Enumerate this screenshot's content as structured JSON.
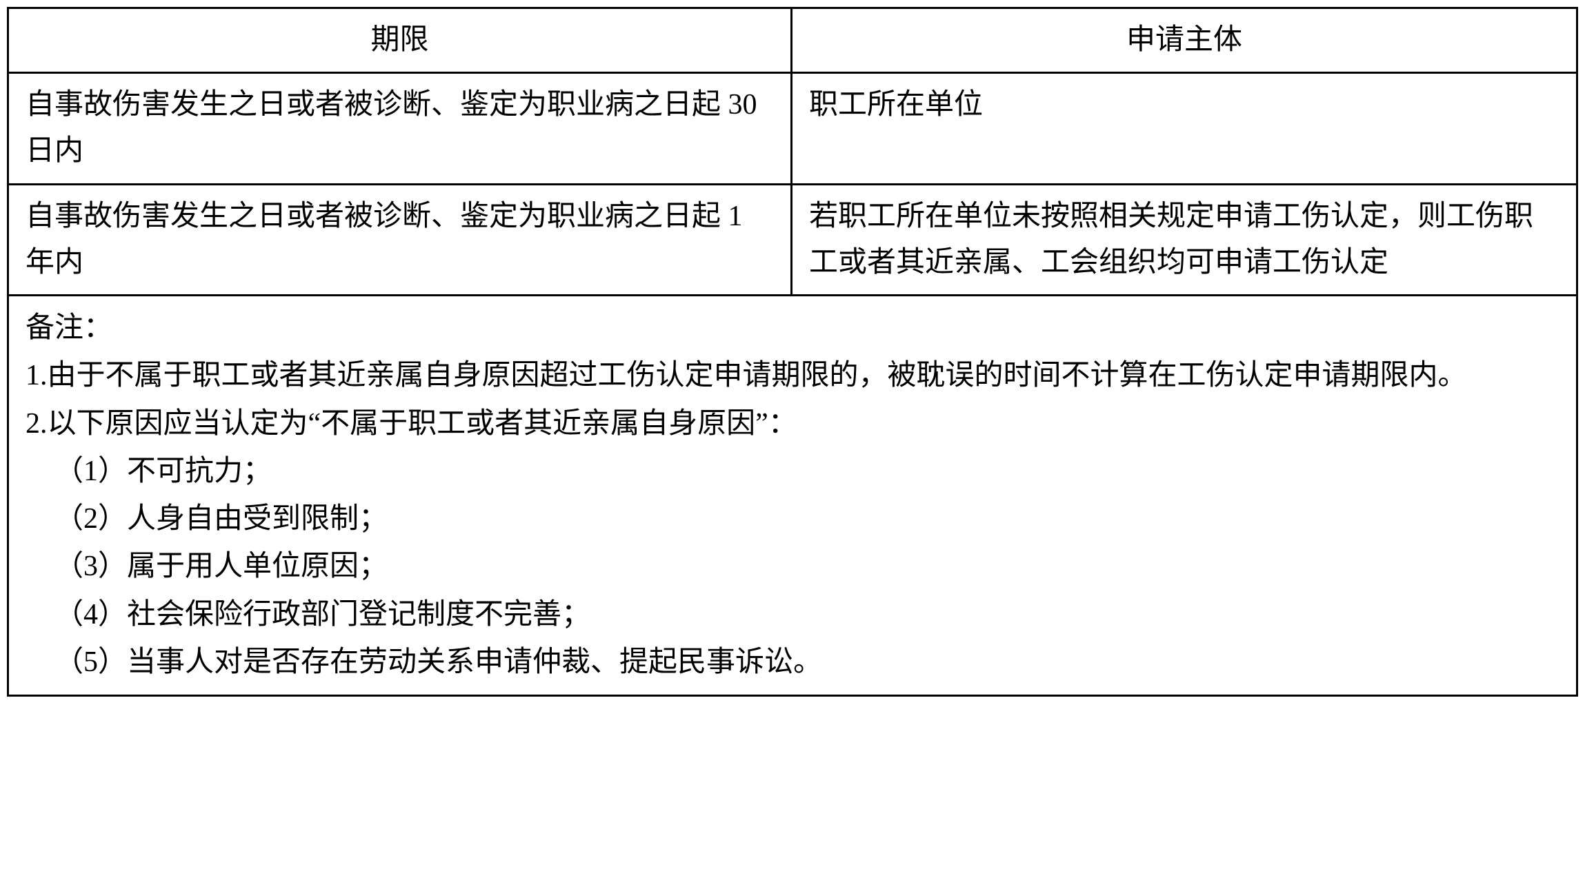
{
  "table": {
    "headers": {
      "col1": "期限",
      "col2": "申请主体"
    },
    "rows": [
      {
        "col1": "自事故伤害发生之日或者被诊断、鉴定为职业病之日起 30 日内",
        "col2": "职工所在单位"
      },
      {
        "col1": "自事故伤害发生之日或者被诊断、鉴定为职业病之日起 1 年内",
        "col2": "若职工所在单位未按照相关规定申请工伤认定，则工伤职工或者其近亲属、工会组织均可申请工伤认定"
      }
    ],
    "notes": {
      "title": "备注：",
      "items": [
        "1.由于不属于职工或者其近亲属自身原因超过工伤认定申请期限的，被耽误的时间不计算在工伤认定申请期限内。",
        "2.以下原因应当认定为“不属于职工或者其近亲属自身原因”："
      ],
      "subitems": [
        "（1）不可抗力；",
        "（2）人身自由受到限制；",
        "（3）属于用人单位原因；",
        "（4）社会保险行政部门登记制度不完善；",
        "（5）当事人对是否存在劳动关系申请仲裁、提起民事诉讼。"
      ]
    }
  },
  "styling": {
    "border_color": "#000000",
    "border_width": 3,
    "background_color": "#ffffff",
    "text_color": "#000000",
    "font_size": 42,
    "font_family": "SimSun",
    "line_height": 1.6,
    "cell_padding": "12px 24px"
  }
}
